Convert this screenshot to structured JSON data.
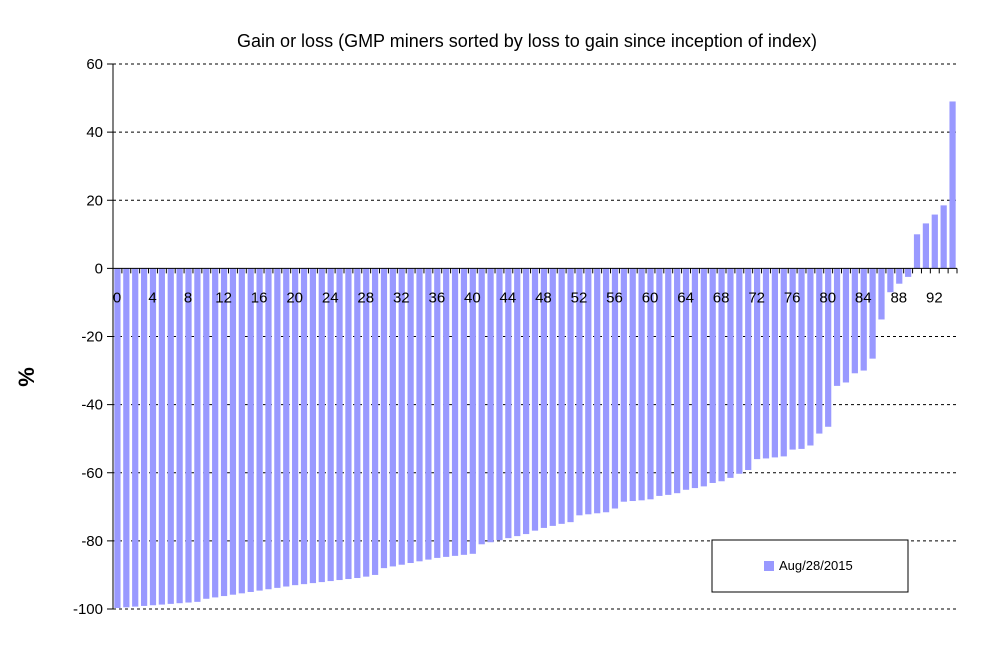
{
  "chart_data": {
    "type": "bar",
    "title": "Gain or loss (GMP miners sorted by loss to gain since inception of index)",
    "xlabel": "",
    "ylabel": "%",
    "ylim": [
      -100,
      60
    ],
    "yticks": [
      60,
      40,
      20,
      0,
      -20,
      -40,
      -60,
      -80,
      -100
    ],
    "x_tick_labels": [
      0,
      4,
      8,
      12,
      16,
      20,
      24,
      28,
      32,
      36,
      40,
      44,
      48,
      52,
      56,
      60,
      64,
      68,
      72,
      76,
      80,
      84,
      88,
      92
    ],
    "grid": true,
    "legend_position": "bottom-right",
    "series": [
      {
        "name": "Aug/28/2015",
        "color": "#9999ff",
        "x": [
          0,
          1,
          2,
          3,
          4,
          5,
          6,
          7,
          8,
          9,
          10,
          11,
          12,
          13,
          14,
          15,
          16,
          17,
          18,
          19,
          20,
          21,
          22,
          23,
          24,
          25,
          26,
          27,
          28,
          29,
          30,
          31,
          32,
          33,
          34,
          35,
          36,
          37,
          38,
          39,
          40,
          41,
          42,
          43,
          44,
          45,
          46,
          47,
          48,
          49,
          50,
          51,
          52,
          53,
          54,
          55,
          56,
          57,
          58,
          59,
          60,
          61,
          62,
          63,
          64,
          65,
          66,
          67,
          68,
          69,
          70,
          71,
          72,
          73,
          74,
          75,
          76,
          77,
          78,
          79,
          80,
          81,
          82,
          83,
          84,
          85,
          86,
          87,
          88,
          89,
          90,
          91,
          92,
          93,
          94
        ],
        "values": [
          -99.7,
          -99.5,
          -99.3,
          -99.1,
          -98.9,
          -98.7,
          -98.5,
          -98.3,
          -98.1,
          -97.9,
          -97.0,
          -96.6,
          -96.2,
          -95.8,
          -95.4,
          -95.0,
          -94.6,
          -94.2,
          -93.8,
          -93.4,
          -93.0,
          -92.7,
          -92.4,
          -92.1,
          -91.8,
          -91.5,
          -91.2,
          -90.9,
          -90.5,
          -90.0,
          -88.0,
          -87.5,
          -87.0,
          -86.5,
          -86.0,
          -85.5,
          -85.0,
          -84.7,
          -84.4,
          -84.1,
          -83.8,
          -81.0,
          -80.4,
          -79.8,
          -79.2,
          -78.6,
          -78.0,
          -77.0,
          -76.2,
          -75.6,
          -75.0,
          -74.5,
          -72.5,
          -72.2,
          -71.9,
          -71.6,
          -70.5,
          -68.5,
          -68.3,
          -68.1,
          -67.8,
          -66.8,
          -66.5,
          -66.0,
          -65.0,
          -64.5,
          -64.0,
          -63.0,
          -62.5,
          -61.5,
          -60.3,
          -59.2,
          -56.0,
          -55.8,
          -55.5,
          -55.2,
          -53.2,
          -53.0,
          -52.0,
          -48.5,
          -46.5,
          -34.5,
          -33.5,
          -30.8,
          -30.0,
          -26.5,
          -15.0,
          -7.0,
          -4.5,
          -2.5,
          10.0,
          13.2,
          15.8,
          18.5,
          49.0
        ]
      }
    ]
  },
  "legend": {
    "entries": [
      {
        "label": "Aug/28/2015",
        "color": "#9999ff"
      }
    ]
  }
}
